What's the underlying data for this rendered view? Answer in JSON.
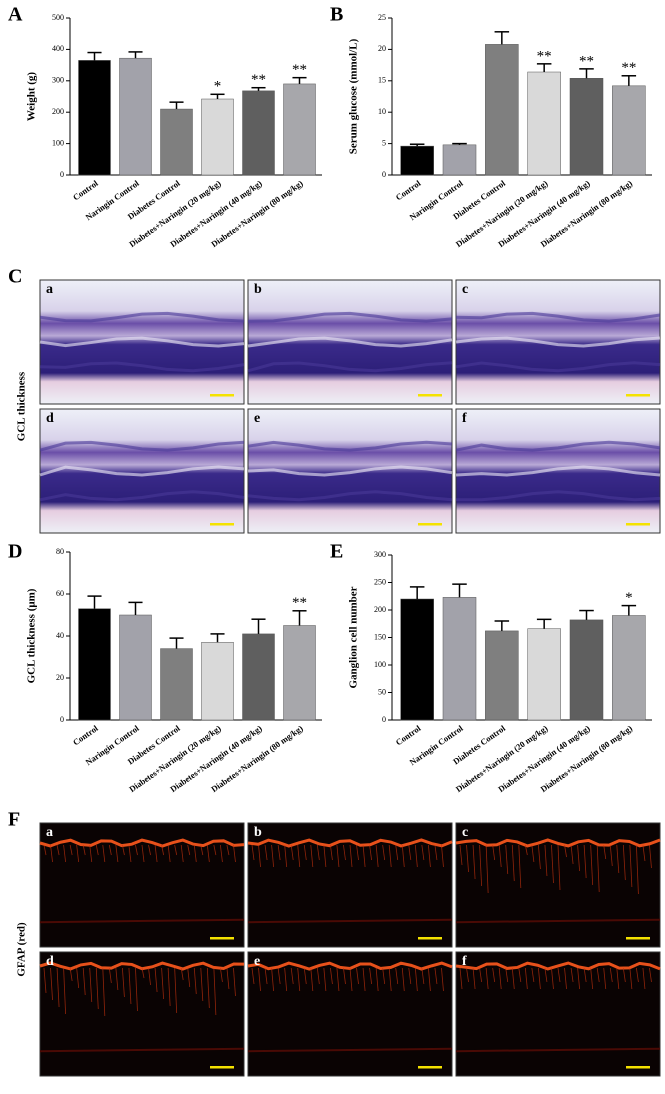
{
  "chart_data": [
    {
      "type": "bar",
      "label": "A",
      "y_label": "Weight (g)",
      "categories": [
        "Control",
        "Naringin Control",
        "Diabetes Control",
        "Diabetes+Naringin (20 mg/kg)",
        "Diabetes+Naringin (40 mg/kg)",
        "Diabetes+Naringin (80 mg/kg)"
      ],
      "values": [
        365,
        372,
        210,
        242,
        268,
        290
      ],
      "errors": [
        25,
        20,
        22,
        15,
        10,
        20
      ],
      "annotations": [
        null,
        null,
        null,
        "*",
        "**",
        "**"
      ],
      "colors": [
        "#000000",
        "#a2a2aa",
        "#7f7f7f",
        "#d9d9d9",
        "#5f5f5f",
        "#a7a7ab"
      ],
      "ylim": [
        0,
        500
      ],
      "yticks": [
        0,
        100,
        200,
        300,
        400,
        500
      ]
    },
    {
      "type": "bar",
      "label": "B",
      "y_label": "Serum glucose (mmol/L)",
      "categories": [
        "Control",
        "Naringin Control",
        "Diabetes Control",
        "Diabetes+Naringin (20 mg/kg)",
        "Diabetes+Naringin (40 mg/kg)",
        "Diabetes+Naringin (80 mg/kg)"
      ],
      "values": [
        4.6,
        4.8,
        20.8,
        16.4,
        15.4,
        14.2
      ],
      "errors": [
        0.3,
        0.2,
        2.0,
        1.3,
        1.5,
        1.6
      ],
      "annotations": [
        null,
        null,
        null,
        "**",
        "**",
        "**"
      ],
      "colors": [
        "#000000",
        "#a2a2aa",
        "#7f7f7f",
        "#d9d9d9",
        "#5f5f5f",
        "#a7a7ab"
      ],
      "ylim": [
        0,
        25
      ],
      "yticks": [
        0,
        5,
        10,
        15,
        20,
        25
      ]
    },
    {
      "type": "bar",
      "label": "D",
      "y_label": "GCL thickness (μm)",
      "categories": [
        "Control",
        "Naringin Control",
        "Diabetes Control",
        "Diabetes+Naringin (20 mg/kg)",
        "Diabetes+Naringin (40 mg/kg)",
        "Diabetes+Naringin (80 mg/kg)"
      ],
      "values": [
        53,
        50,
        34,
        37,
        41,
        45
      ],
      "errors": [
        6,
        6,
        5,
        4,
        7,
        7
      ],
      "annotations": [
        null,
        null,
        null,
        null,
        null,
        "**"
      ],
      "colors": [
        "#000000",
        "#a2a2aa",
        "#7f7f7f",
        "#d9d9d9",
        "#5f5f5f",
        "#a7a7ab"
      ],
      "ylim": [
        0,
        80
      ],
      "yticks": [
        0,
        20,
        40,
        60,
        80
      ]
    },
    {
      "type": "bar",
      "label": "E",
      "y_label": "Ganglion cell number",
      "categories": [
        "Control",
        "Naringin Control",
        "Diabetes Control",
        "Diabetes+Naringin (20 mg/kg)",
        "Diabetes+Naringin (40 mg/kg)",
        "Diabetes+Naringin (80 mg/kg)"
      ],
      "values": [
        220,
        223,
        162,
        166,
        182,
        190
      ],
      "errors": [
        22,
        24,
        18,
        17,
        17,
        18
      ],
      "annotations": [
        null,
        null,
        null,
        null,
        null,
        "*"
      ],
      "colors": [
        "#000000",
        "#a2a2aa",
        "#7f7f7f",
        "#d9d9d9",
        "#5f5f5f",
        "#a7a7ab"
      ],
      "ylim": [
        0,
        300
      ],
      "yticks": [
        0,
        50,
        100,
        150,
        200,
        250,
        300
      ]
    }
  ],
  "panel_C": {
    "label": "C",
    "side_label": "GCL thickness",
    "images": [
      "a",
      "b",
      "c",
      "d",
      "e",
      "f"
    ]
  },
  "panel_F": {
    "label": "F",
    "side_label": "GFAP (red)",
    "images": [
      "a",
      "b",
      "c",
      "d",
      "e",
      "f"
    ]
  }
}
